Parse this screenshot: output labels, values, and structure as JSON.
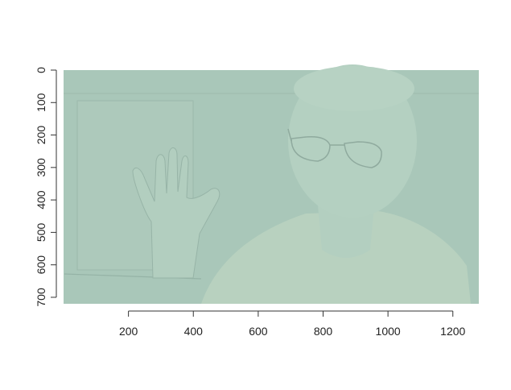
{
  "chart_data": {
    "type": "image",
    "title": "",
    "xlabel": "",
    "ylabel": "",
    "x_ticks": [
      200,
      400,
      600,
      800,
      1000,
      1200
    ],
    "y_ticks": [
      0,
      100,
      200,
      300,
      400,
      500,
      600,
      700
    ],
    "xlim": [
      0,
      1280
    ],
    "ylim": [
      720,
      0
    ],
    "y_axis_inverted": true,
    "y_tick_label_rotation": "vertical",
    "image_content": "webcam frame: person with glasses raising an open hand, washed-out pale green tint",
    "colors": {
      "background": "#a9c7b9",
      "wall": "#afcabd",
      "face": "#b5d1c1",
      "shirt": "#bcd4c0",
      "outline": "#93b0a3",
      "axis": "#333333"
    }
  }
}
